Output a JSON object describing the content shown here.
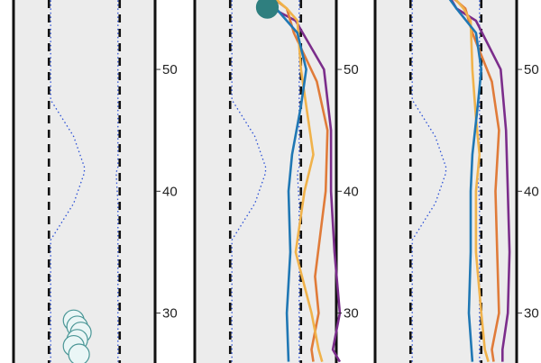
{
  "chart_data": [
    {
      "type": "line",
      "ylim": [
        25.9,
        55.7
      ],
      "yticks": [
        30,
        40,
        50
      ],
      "lanes": {
        "lane_x": [
          -1,
          1
        ],
        "road_edge_x": [
          -2,
          2
        ]
      },
      "centerlines": [
        {
          "points": [
            [
              -0.95,
              56
            ],
            [
              -0.95,
              50
            ],
            [
              -0.95,
              47.5
            ],
            [
              -0.3,
              44.5
            ],
            [
              0,
              42
            ],
            [
              0,
              41.5
            ],
            [
              -0.3,
              39
            ],
            [
              -0.95,
              36
            ],
            [
              -0.95,
              30
            ],
            [
              -0.95,
              26
            ]
          ]
        },
        {
          "points": [
            [
              0.95,
              56
            ],
            [
              0.95,
              50
            ],
            [
              0.95,
              47.5
            ],
            [
              0.95,
              44.5
            ],
            [
              0.95,
              42
            ],
            [
              0.9,
              41.5
            ],
            [
              0.95,
              39
            ],
            [
              0.95,
              36
            ],
            [
              0.95,
              30
            ],
            [
              0.95,
              26
            ]
          ]
        }
      ],
      "vehicles": [
        {
          "x": -0.3,
          "y": 29.4,
          "style": "outline"
        },
        {
          "x": -0.2,
          "y": 28.9,
          "style": "outline"
        },
        {
          "x": -0.1,
          "y": 28.4,
          "style": "outline"
        },
        {
          "x": -0.2,
          "y": 27.8,
          "style": "outline"
        },
        {
          "x": -0.3,
          "y": 27.3,
          "style": "outline"
        },
        {
          "x": -0.15,
          "y": 26.6,
          "style": "outline"
        }
      ],
      "series": []
    },
    {
      "type": "line",
      "ylim": [
        25.9,
        55.7
      ],
      "yticks": [
        30,
        40,
        50
      ],
      "lanes": {
        "lane_x": [
          -1,
          1
        ],
        "road_edge_x": [
          -2,
          2
        ]
      },
      "centerlines": [
        {
          "points": [
            [
              -0.95,
              56
            ],
            [
              -0.95,
              50
            ],
            [
              -0.95,
              47.5
            ],
            [
              -0.3,
              44.5
            ],
            [
              0,
              42
            ],
            [
              0,
              41.5
            ],
            [
              -0.3,
              39
            ],
            [
              -0.95,
              36
            ],
            [
              -0.95,
              30
            ],
            [
              -0.95,
              26
            ]
          ]
        },
        {
          "points": [
            [
              0.95,
              56
            ],
            [
              0.95,
              50
            ],
            [
              0.95,
              47.5
            ],
            [
              0.95,
              44.5
            ],
            [
              0.95,
              42
            ],
            [
              0.9,
              41.5
            ],
            [
              0.95,
              39
            ],
            [
              0.95,
              36
            ],
            [
              0.95,
              30
            ],
            [
              0.95,
              26
            ]
          ]
        }
      ],
      "vehicles": [
        {
          "x": 0.05,
          "y": 55.1,
          "style": "filled"
        }
      ],
      "series": [
        {
          "color": "#7b2d8b",
          "points": [
            [
              0.1,
              56
            ],
            [
              0.2,
              55
            ],
            [
              0.85,
              54
            ],
            [
              1.65,
              50
            ],
            [
              1.85,
              45
            ],
            [
              1.85,
              40
            ],
            [
              1.95,
              35
            ],
            [
              2.1,
              30
            ],
            [
              1.9,
              27
            ],
            [
              2.1,
              26
            ]
          ]
        },
        {
          "color": "#e07b39",
          "points": [
            [
              0.15,
              56
            ],
            [
              0.6,
              55
            ],
            [
              0.8,
              53
            ],
            [
              1.45,
              49
            ],
            [
              1.75,
              45
            ],
            [
              1.7,
              40
            ],
            [
              1.4,
              33
            ],
            [
              1.5,
              30
            ],
            [
              1.3,
              27
            ],
            [
              1.35,
              26
            ]
          ]
        },
        {
          "color": "#f0b24a",
          "points": [
            [
              0.2,
              56
            ],
            [
              0.6,
              55
            ],
            [
              0.9,
              54
            ],
            [
              1.0,
              50
            ],
            [
              1.2,
              46
            ],
            [
              1.35,
              43
            ],
            [
              1.1,
              40
            ],
            [
              0.85,
              35
            ],
            [
              1.3,
              30
            ],
            [
              1.5,
              27
            ],
            [
              1.6,
              26
            ]
          ]
        },
        {
          "color": "#1f77b4",
          "points": [
            [
              0.05,
              56
            ],
            [
              0.3,
              55
            ],
            [
              0.9,
              53
            ],
            [
              1.15,
              50
            ],
            [
              1.0,
              47
            ],
            [
              0.75,
              43
            ],
            [
              0.65,
              40
            ],
            [
              0.7,
              35
            ],
            [
              0.6,
              30
            ],
            [
              0.65,
              26
            ]
          ]
        }
      ]
    },
    {
      "type": "line",
      "ylim": [
        25.9,
        55.7
      ],
      "yticks": [
        30,
        40,
        50
      ],
      "lanes": {
        "lane_x": [
          -1,
          1
        ],
        "road_edge_x": [
          -2,
          2
        ]
      },
      "centerlines": [
        {
          "points": [
            [
              -0.95,
              56
            ],
            [
              -0.95,
              50
            ],
            [
              -0.95,
              47.5
            ],
            [
              -0.3,
              44.5
            ],
            [
              0,
              42
            ],
            [
              0,
              41.5
            ],
            [
              -0.3,
              39
            ],
            [
              -0.95,
              36
            ],
            [
              -0.95,
              30
            ],
            [
              -0.95,
              26
            ]
          ]
        },
        {
          "points": [
            [
              0.95,
              56
            ],
            [
              0.95,
              50
            ],
            [
              0.95,
              47.5
            ],
            [
              0.95,
              44.5
            ],
            [
              0.95,
              42
            ],
            [
              0.9,
              41.5
            ],
            [
              0.95,
              39
            ],
            [
              0.95,
              36
            ],
            [
              0.95,
              30
            ],
            [
              0.95,
              26
            ]
          ]
        }
      ],
      "vehicles": [],
      "series": [
        {
          "color": "#7b2d8b",
          "points": [
            [
              0.1,
              56
            ],
            [
              0.3,
              55
            ],
            [
              0.85,
              54
            ],
            [
              1.55,
              50
            ],
            [
              1.7,
              45
            ],
            [
              1.75,
              40
            ],
            [
              1.8,
              35
            ],
            [
              1.75,
              30
            ],
            [
              1.6,
              27
            ],
            [
              1.6,
              26
            ]
          ]
        },
        {
          "color": "#e07b39",
          "points": [
            [
              0.15,
              56
            ],
            [
              0.55,
              55
            ],
            [
              0.75,
              53
            ],
            [
              1.3,
              49
            ],
            [
              1.5,
              45
            ],
            [
              1.4,
              40
            ],
            [
              1.45,
              35
            ],
            [
              1.5,
              30
            ],
            [
              1.3,
              27
            ],
            [
              1.35,
              26
            ]
          ]
        },
        {
          "color": "#f0b24a",
          "points": [
            [
              0.2,
              56
            ],
            [
              0.5,
              55
            ],
            [
              0.7,
              54
            ],
            [
              0.75,
              50
            ],
            [
              0.85,
              46
            ],
            [
              0.95,
              43
            ],
            [
              0.85,
              40
            ],
            [
              0.85,
              35
            ],
            [
              1.0,
              30
            ],
            [
              1.1,
              27
            ],
            [
              1.2,
              26
            ]
          ]
        },
        {
          "color": "#1f77b4",
          "points": [
            [
              0.05,
              56
            ],
            [
              0.3,
              55
            ],
            [
              0.85,
              53
            ],
            [
              1.0,
              50
            ],
            [
              0.9,
              47
            ],
            [
              0.75,
              43
            ],
            [
              0.7,
              40
            ],
            [
              0.7,
              35
            ],
            [
              0.65,
              30
            ],
            [
              0.75,
              26
            ]
          ]
        }
      ]
    }
  ]
}
